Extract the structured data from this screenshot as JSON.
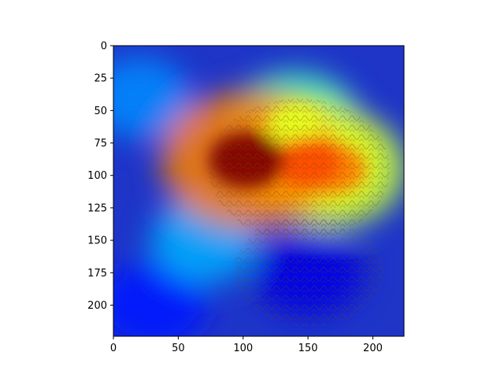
{
  "chart_data": {
    "type": "heatmap",
    "description_style": "image overlay",
    "title": "",
    "xlabel": "",
    "ylabel": "",
    "xlim": [
      0,
      224
    ],
    "ylim": [
      224,
      0
    ],
    "x_ticks": [
      0,
      50,
      100,
      150,
      200
    ],
    "y_ticks": [
      0,
      25,
      50,
      75,
      100,
      125,
      150,
      175,
      200
    ],
    "x_tick_labels": [
      "0",
      "50",
      "100",
      "150",
      "200"
    ],
    "y_tick_labels": [
      "0",
      "25",
      "50",
      "75",
      "100",
      "125",
      "150",
      "175",
      "200"
    ],
    "colormap": "jet",
    "grid": false,
    "legend": false,
    "hotspots": [
      {
        "x": 103,
        "y": 88,
        "level": 1.0
      },
      {
        "x": 150,
        "y": 90,
        "level": 0.8
      },
      {
        "x": 170,
        "y": 95,
        "level": 0.75
      },
      {
        "x": 140,
        "y": 60,
        "level": 0.6
      },
      {
        "x": 70,
        "y": 150,
        "level": 0.4
      },
      {
        "x": 20,
        "y": 40,
        "level": 0.35
      }
    ],
    "coldspots": [
      {
        "x": 150,
        "y": 175,
        "level": 0.1
      },
      {
        "x": 30,
        "y": 200,
        "level": 0.15
      }
    ]
  }
}
